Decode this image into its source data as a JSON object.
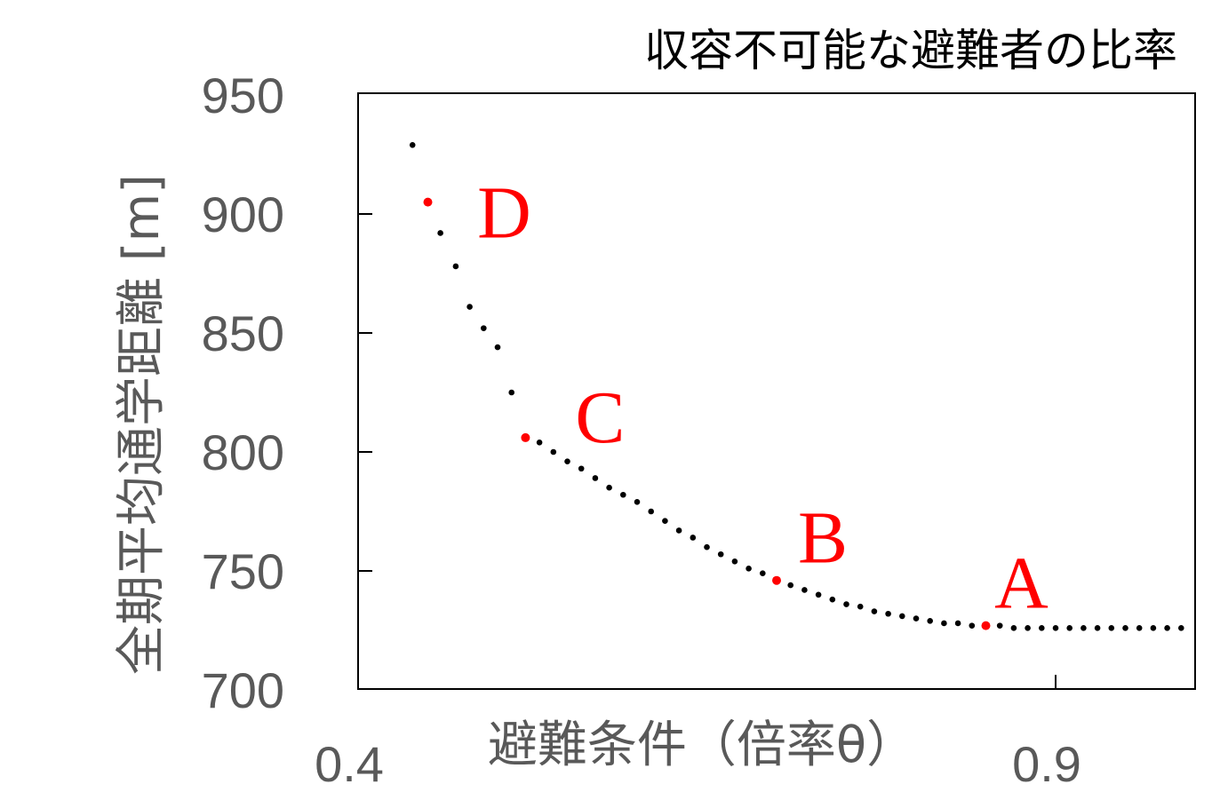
{
  "chart_data": {
    "type": "scatter",
    "title": "収容不可能な避難者の比率",
    "xlabel": "避難条件（倍率θ）",
    "ylabel": "全期平均通学距離 [m]",
    "xlim": [
      0.4,
      1.0
    ],
    "ylim": [
      700,
      950
    ],
    "x_ticks": [
      0.4,
      0.9
    ],
    "x_tick_labels": [
      "0.4",
      "0.9"
    ],
    "y_ticks": [
      700,
      750,
      800,
      850,
      900,
      950
    ],
    "y_tick_labels": [
      "700",
      "750",
      "800",
      "850",
      "900",
      "950"
    ],
    "grid": false,
    "legend": "none",
    "colors": {
      "series": "#000000",
      "highlight": "#ff0000",
      "axis_text": "#595959",
      "title": "#000000"
    },
    "series": [
      {
        "values": [
          [
            0.439,
            929
          ],
          [
            0.459,
            892
          ],
          [
            0.47,
            878
          ],
          [
            0.48,
            861
          ],
          [
            0.49,
            852
          ],
          [
            0.5,
            844
          ],
          [
            0.51,
            825
          ],
          [
            0.53,
            804
          ],
          [
            0.54,
            800
          ],
          [
            0.55,
            796
          ],
          [
            0.56,
            793
          ],
          [
            0.57,
            789
          ],
          [
            0.58,
            785
          ],
          [
            0.59,
            782
          ],
          [
            0.6,
            779
          ],
          [
            0.61,
            775
          ],
          [
            0.62,
            771
          ],
          [
            0.63,
            767
          ],
          [
            0.64,
            764
          ],
          [
            0.65,
            760
          ],
          [
            0.66,
            757
          ],
          [
            0.67,
            754
          ],
          [
            0.68,
            751
          ],
          [
            0.69,
            749
          ],
          [
            0.71,
            744
          ],
          [
            0.72,
            742
          ],
          [
            0.73,
            740
          ],
          [
            0.74,
            738
          ],
          [
            0.75,
            736
          ],
          [
            0.76,
            735
          ],
          [
            0.77,
            733
          ],
          [
            0.78,
            732
          ],
          [
            0.79,
            731
          ],
          [
            0.8,
            730
          ],
          [
            0.81,
            729
          ],
          [
            0.82,
            728
          ],
          [
            0.83,
            728
          ],
          [
            0.84,
            727
          ],
          [
            0.86,
            727
          ],
          [
            0.87,
            726
          ],
          [
            0.88,
            726
          ],
          [
            0.89,
            726
          ],
          [
            0.9,
            726
          ],
          [
            0.91,
            726
          ],
          [
            0.92,
            726
          ],
          [
            0.93,
            726
          ],
          [
            0.94,
            726
          ],
          [
            0.95,
            726
          ],
          [
            0.96,
            726
          ],
          [
            0.97,
            726
          ],
          [
            0.98,
            726
          ],
          [
            0.99,
            726
          ]
        ]
      }
    ],
    "highlighted_points": [
      {
        "label": "A",
        "x": 0.85,
        "y": 727
      },
      {
        "label": "B",
        "x": 0.7,
        "y": 746
      },
      {
        "label": "C",
        "x": 0.52,
        "y": 806
      },
      {
        "label": "D",
        "x": 0.45,
        "y": 905
      }
    ]
  }
}
